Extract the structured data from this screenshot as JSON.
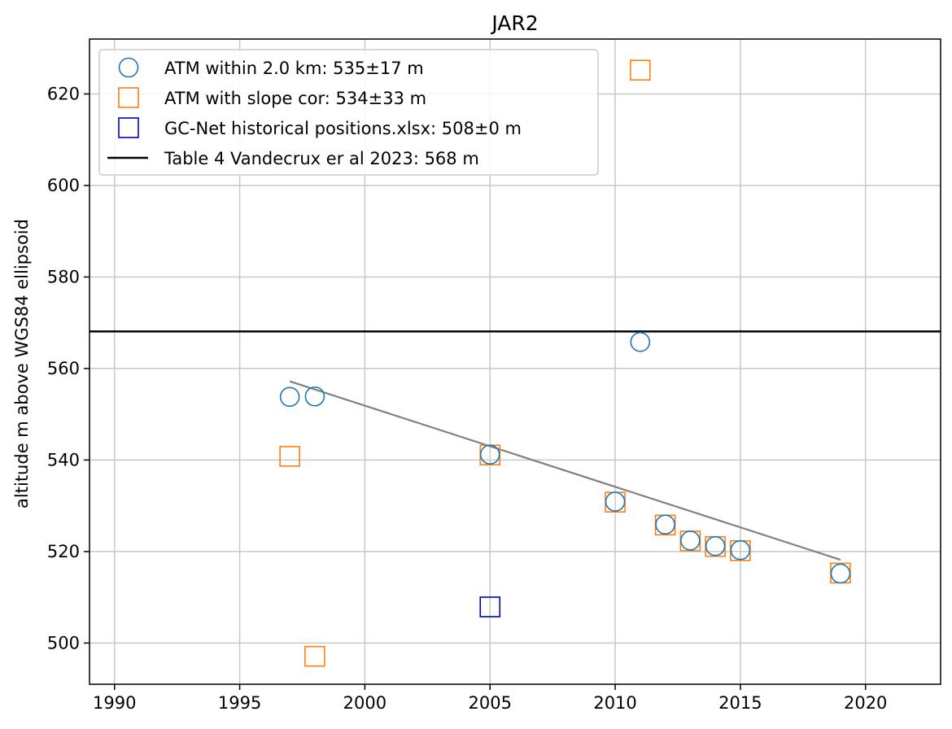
{
  "chart_data": {
    "type": "scatter",
    "title": "JAR2",
    "xlabel": "",
    "ylabel": "altitude m above WGS84 ellipsoid",
    "xlim": [
      1989,
      2023
    ],
    "ylim": [
      491,
      632
    ],
    "xticks": [
      1990,
      1995,
      2000,
      2005,
      2010,
      2015,
      2020
    ],
    "yticks": [
      500,
      520,
      540,
      560,
      580,
      600,
      620
    ],
    "grid": true,
    "legend_position": "top-left",
    "series": [
      {
        "name": "ATM within 2.0 km: 535±17 m",
        "marker": "circle",
        "color": "#1f77b4",
        "x": [
          1997,
          1998,
          2005,
          2010,
          2011,
          2012,
          2013,
          2014,
          2015,
          2019
        ],
        "y": [
          553.8,
          553.9,
          541.2,
          530.9,
          565.8,
          525.9,
          522.4,
          521.2,
          520.3,
          515.2
        ]
      },
      {
        "name": "ATM with slope cor: 534±33 m",
        "marker": "square",
        "color": "#ff7f0e",
        "x": [
          1997,
          1998,
          2005,
          2010,
          2011,
          2012,
          2013,
          2014,
          2015,
          2019
        ],
        "y": [
          540.8,
          497.1,
          541.1,
          530.8,
          625.2,
          525.8,
          522.3,
          521.1,
          520.2,
          515.3
        ]
      },
      {
        "name": "GC-Net historical positions.xlsx: 508±0 m",
        "marker": "square",
        "color": "#0000cd",
        "x": [
          2005
        ],
        "y": [
          507.9
        ]
      }
    ],
    "reference_line": {
      "name": "Table 4 Vandecrux er al 2023: 568 m",
      "y": 568.1,
      "color": "#000000"
    },
    "trend_line": {
      "color": "#808080",
      "x": [
        1997,
        2019
      ],
      "y": [
        557.2,
        518.2
      ]
    }
  }
}
